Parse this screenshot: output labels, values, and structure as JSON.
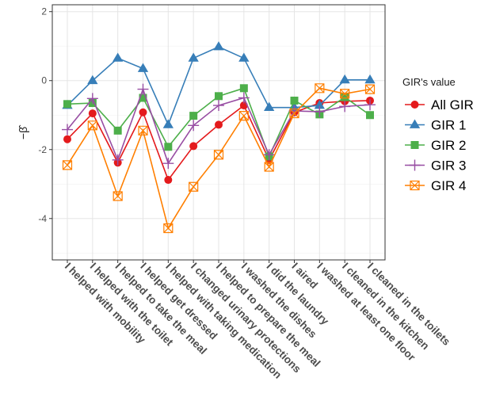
{
  "chart_data": {
    "type": "line",
    "title": "",
    "xlabel": "",
    "ylabel": "−β̂",
    "ylim": [
      -5.2,
      2.2
    ],
    "yticks": [
      2,
      0,
      -2,
      -4
    ],
    "grid": true,
    "legend_position": "right",
    "legend_title": "GIR's value",
    "categories": [
      "I helped with mobility",
      "I helped with the toilet",
      "I helped to take the meal",
      "I helped get dressed",
      "I helped with taking medication",
      "I changed urinary protections",
      "I helped to prepare the meal",
      "I washed the dishes",
      "I did the laundry",
      "I aired",
      "I washed at least one floor",
      "I cleaned in the kitchen",
      "I cleaned in the toilets"
    ],
    "series": [
      {
        "name": "All GIR",
        "color": "#e41a1c",
        "marker": "circle",
        "values": [
          -1.7,
          -0.95,
          -2.38,
          -0.92,
          -2.88,
          -1.9,
          -1.28,
          -0.72,
          -2.3,
          -0.92,
          -0.65,
          -0.6,
          -0.58
        ]
      },
      {
        "name": "GIR 1",
        "color": "#377eb8",
        "marker": "triangle",
        "values": [
          -0.72,
          0.0,
          0.65,
          0.35,
          -1.28,
          0.65,
          0.98,
          0.65,
          -0.78,
          -0.78,
          -0.72,
          0.02,
          0.02
        ]
      },
      {
        "name": "GIR 2",
        "color": "#4daf4a",
        "marker": "square",
        "values": [
          -0.68,
          -0.65,
          -1.45,
          -0.5,
          -1.92,
          -1.02,
          -0.45,
          -0.22,
          -2.2,
          -0.58,
          -0.98,
          -0.48,
          -1.0
        ]
      },
      {
        "name": "GIR 3",
        "color": "#984ea3",
        "marker": "plus",
        "values": [
          -1.42,
          -0.52,
          -2.3,
          -0.25,
          -2.4,
          -1.3,
          -0.72,
          -0.5,
          -2.15,
          -0.88,
          -0.9,
          -0.75,
          -0.7
        ]
      },
      {
        "name": "GIR 4",
        "color": "#ff7f00",
        "marker": "boxcross",
        "values": [
          -2.45,
          -1.3,
          -3.35,
          -1.45,
          -4.28,
          -3.08,
          -2.15,
          -1.02,
          -2.5,
          -0.95,
          -0.22,
          -0.38,
          -0.25
        ]
      }
    ]
  }
}
